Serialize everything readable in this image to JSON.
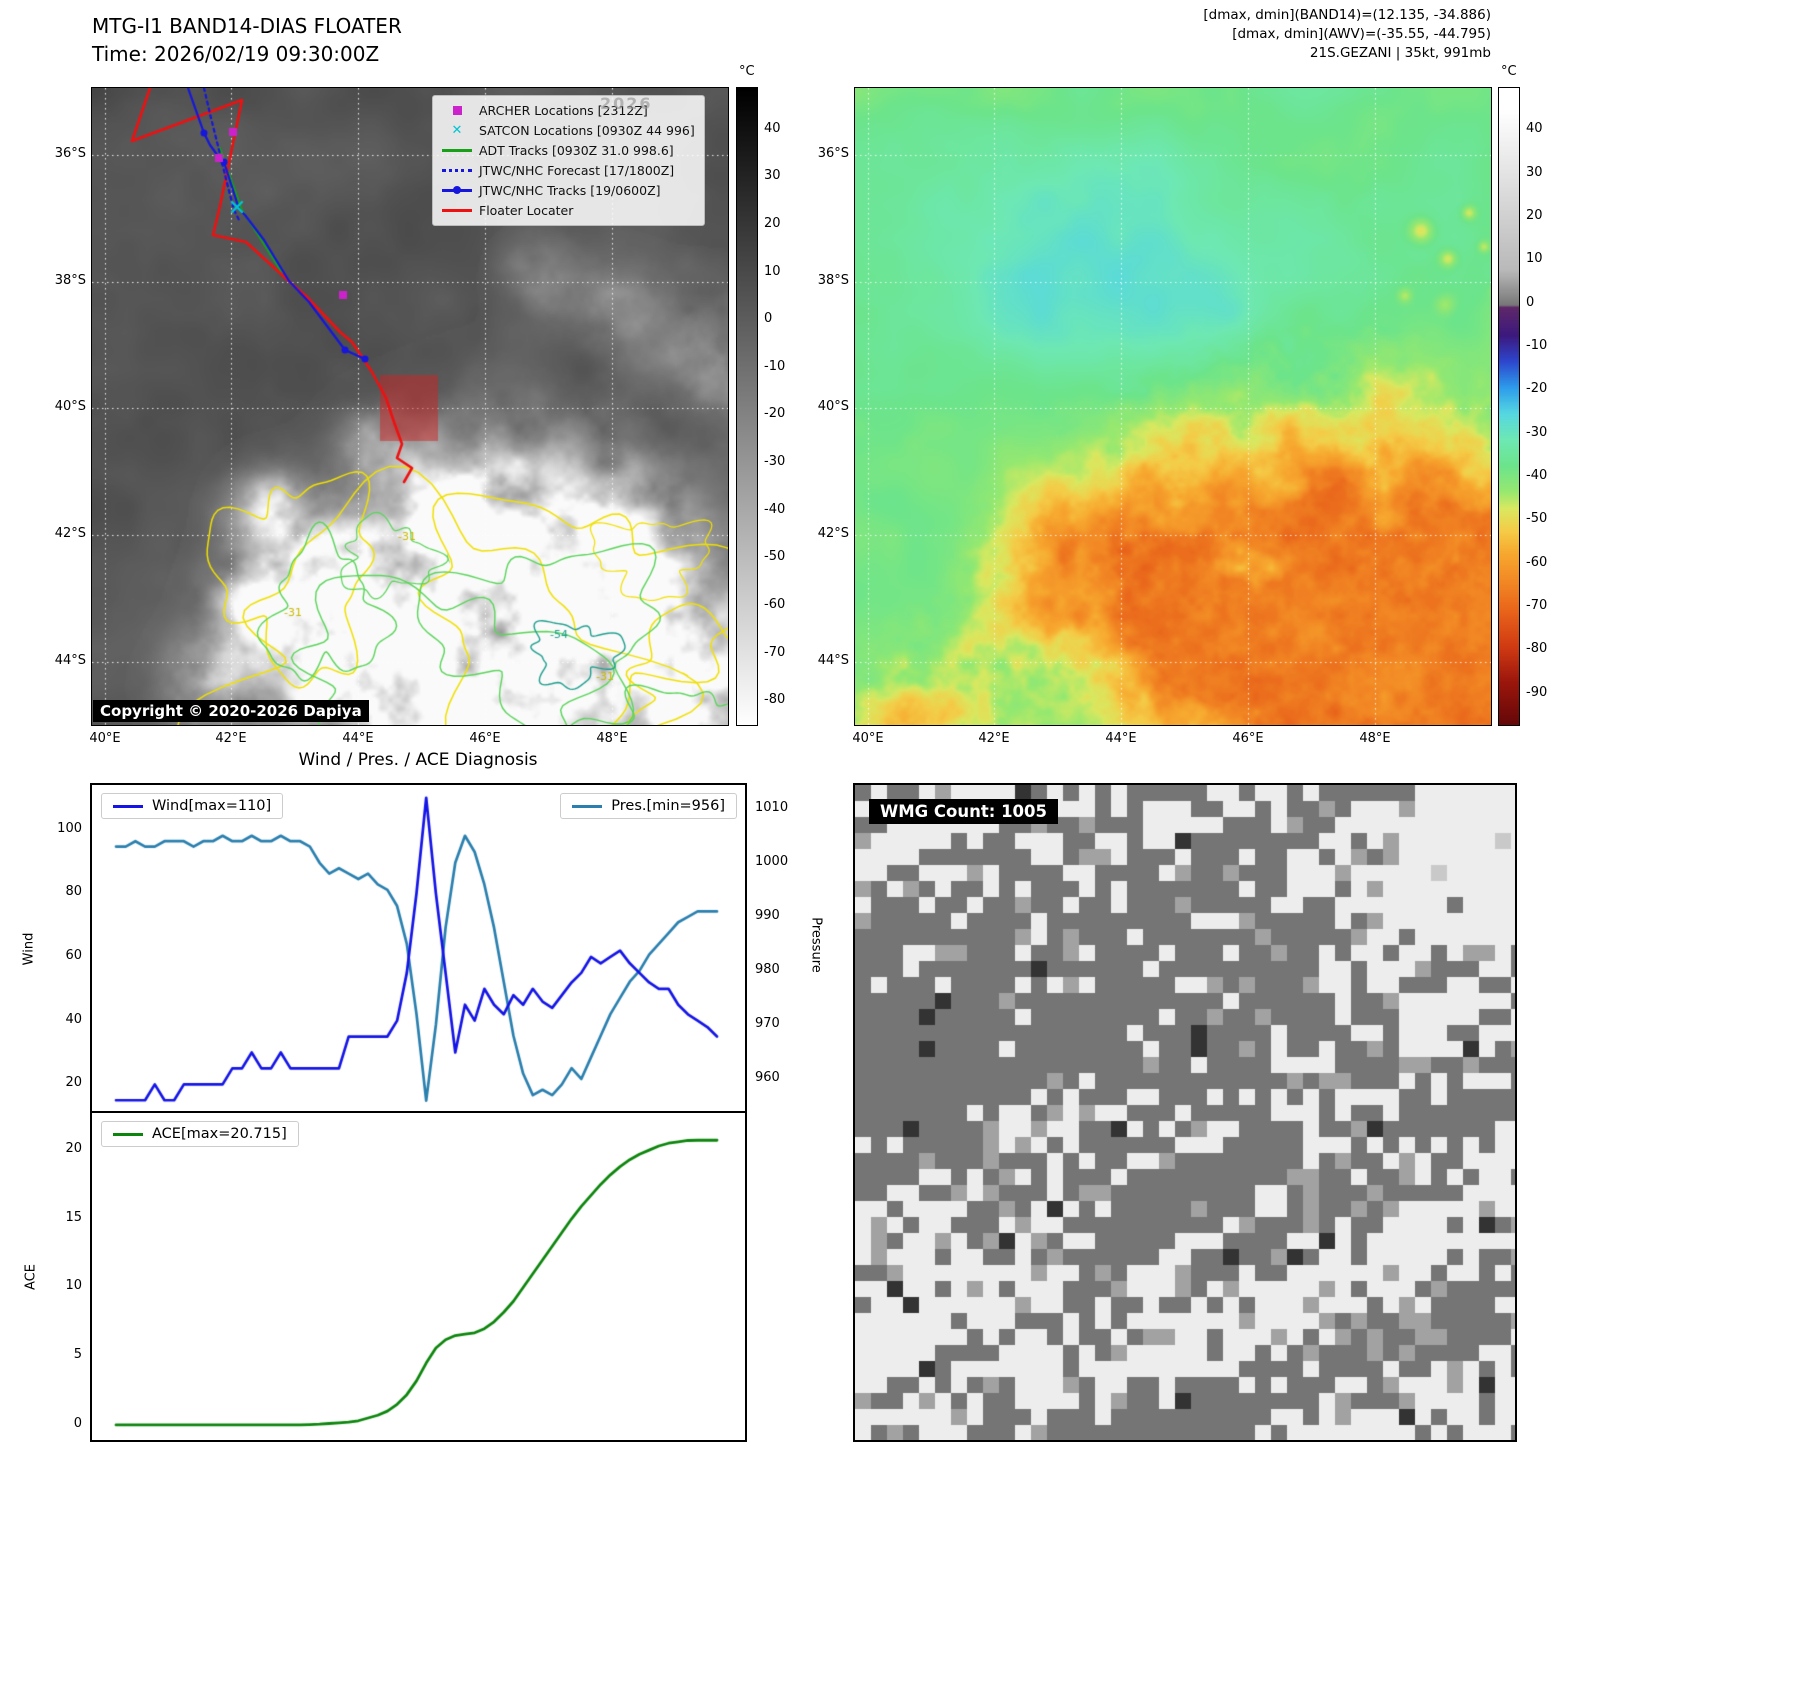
{
  "header": {
    "title_line1": "MTG-I1 BAND14-DIAS FLOATER",
    "title_line2": "Time: 2026/02/19 09:30:00Z",
    "stats_line1": "[dmax, dmin](BAND14)=(12.135, -34.886)",
    "stats_line2": "[dmax, dmin](AWV)=(-35.55, -44.795)",
    "stats_line3": "21S.GEZANI | 35kt, 991mb"
  },
  "left_map": {
    "legend": [
      {
        "label": "ARCHER Locations [2312Z]",
        "marker": "square",
        "color": "#cc22cc"
      },
      {
        "label": "SATCON Locations [0930Z 44 996]",
        "marker": "x",
        "color": "#00c4d4"
      },
      {
        "label": "ADT Tracks [0930Z 31.0 998.6]",
        "marker": "line",
        "color": "#18a018"
      },
      {
        "label": "JTWC/NHC Forecast [17/1800Z]",
        "marker": "dotted-line",
        "color": "#1616dd"
      },
      {
        "label": "JTWC/NHC Tracks [19/0600Z]",
        "marker": "line-dot",
        "color": "#1616dd"
      },
      {
        "label": "Floater Locater",
        "marker": "line",
        "color": "#ee1111"
      }
    ],
    "copyright": "Copyright © 2020-2026 Dapiya",
    "watermark": "2026",
    "lat_ticks": [
      "36°S",
      "38°S",
      "40°S",
      "42°S",
      "44°S"
    ],
    "lon_ticks": [
      "40°E",
      "42°E",
      "44°E",
      "46°E",
      "48°E"
    ],
    "colorbar": {
      "unit": "°C",
      "ticks": [
        40,
        30,
        20,
        10,
        0,
        -10,
        -20,
        -30,
        -40,
        -50,
        -60,
        -70,
        -80
      ]
    },
    "contour_labels": {
      "yellow": "-31",
      "teal": "-54"
    }
  },
  "right_map": {
    "lat_ticks": [
      "36°S",
      "38°S",
      "40°S",
      "42°S",
      "44°S"
    ],
    "lon_ticks": [
      "40°E",
      "42°E",
      "44°E",
      "46°E",
      "48°E"
    ],
    "colorbar": {
      "unit": "°C",
      "ticks": [
        40,
        30,
        20,
        10,
        0,
        -10,
        -20,
        -30,
        -40,
        -50,
        -60,
        -70,
        -80,
        -90
      ]
    }
  },
  "charts": {
    "title": "Wind / Pres. / ACE Diagnosis"
  },
  "chart_data": [
    {
      "type": "line",
      "title": "Wind / Pres. / ACE Diagnosis",
      "grid": false,
      "series": [
        {
          "name": "Wind[max=110]",
          "color": "#1414e6",
          "axis": "left",
          "values": [
            15,
            15,
            15,
            15,
            20,
            15,
            15,
            20,
            20,
            20,
            20,
            20,
            25,
            25,
            30,
            25,
            25,
            30,
            25,
            25,
            25,
            25,
            25,
            25,
            35,
            35,
            35,
            35,
            35,
            40,
            55,
            80,
            110,
            80,
            55,
            30,
            45,
            40,
            50,
            45,
            42,
            48,
            45,
            50,
            46,
            44,
            48,
            52,
            55,
            60,
            58,
            60,
            62,
            58,
            55,
            52,
            50,
            50,
            45,
            42,
            40,
            38,
            35
          ]
        },
        {
          "name": "Pres.[min=956]",
          "color": "#2a7fae",
          "axis": "right",
          "values": [
            1003,
            1003,
            1004,
            1003,
            1003,
            1004,
            1004,
            1004,
            1003,
            1004,
            1004,
            1005,
            1004,
            1004,
            1005,
            1004,
            1004,
            1005,
            1004,
            1004,
            1003,
            1000,
            998,
            999,
            998,
            997,
            998,
            996,
            995,
            992,
            985,
            972,
            956,
            970,
            988,
            1000,
            1005,
            1002,
            996,
            988,
            978,
            968,
            961,
            957,
            958,
            957,
            959,
            962,
            960,
            964,
            968,
            972,
            975,
            978,
            980,
            983,
            985,
            987,
            989,
            990,
            991,
            991,
            991
          ]
        }
      ],
      "left_axis": {
        "label": "Wind",
        "ticks": [
          20,
          40,
          60,
          80,
          100
        ],
        "range": [
          11,
          114
        ]
      },
      "right_axis": {
        "label": "Pressure",
        "ticks": [
          960,
          970,
          980,
          990,
          1000,
          1010
        ],
        "range": [
          953.7,
          1014.4
        ]
      }
    },
    {
      "type": "line",
      "grid": false,
      "series": [
        {
          "name": "ACE[max=20.715]",
          "color": "#0c850c",
          "axis": "left",
          "values": [
            0,
            0,
            0,
            0,
            0,
            0,
            0,
            0,
            0,
            0,
            0,
            0,
            0,
            0,
            0,
            0,
            0,
            0,
            0,
            0,
            0.02,
            0.05,
            0.1,
            0.15,
            0.2,
            0.3,
            0.5,
            0.7,
            1.0,
            1.5,
            2.2,
            3.2,
            4.5,
            5.6,
            6.2,
            6.5,
            6.6,
            6.7,
            7.0,
            7.5,
            8.2,
            9.0,
            10.0,
            11.0,
            12.0,
            13.0,
            14.0,
            15.0,
            15.9,
            16.7,
            17.5,
            18.2,
            18.8,
            19.3,
            19.7,
            20.0,
            20.3,
            20.5,
            20.6,
            20.7,
            20.715,
            20.715,
            20.715
          ]
        }
      ],
      "left_axis": {
        "label": "ACE",
        "ticks": [
          0,
          5,
          10,
          15,
          20
        ],
        "range": [
          -1.1,
          22.7
        ]
      }
    }
  ],
  "wmg": {
    "badge": "WMG Count: 1005"
  },
  "colors": {
    "track_red": "#ee1111",
    "track_blue": "#1616dd",
    "adt_green": "#18a018",
    "archer_magenta": "#cc22cc",
    "satcon_cyan": "#00c4d4",
    "contour_yellow": "#f0e000",
    "contour_green": "#5ad45a",
    "contour_teal": "#1f9e8e",
    "highlight_box": "rgba(205,35,35,0.5)"
  }
}
